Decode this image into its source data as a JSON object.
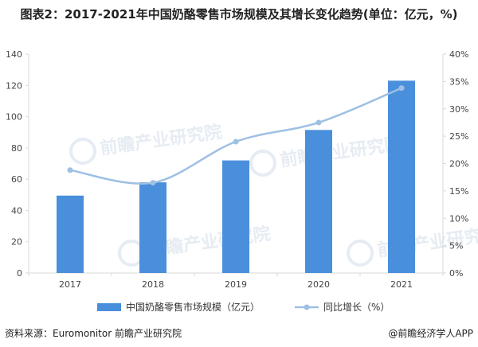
{
  "title": "图表2：2017-2021年中国奶酪零售市场规模及其增长变化趋势(单位：亿元，%)",
  "source": "资料来源：Euromonitor 前瞻产业研究院",
  "credit": "@前瞻经济学人APP",
  "watermark": "前瞻产业研究院",
  "colors": {
    "bar": "#4a8fdc",
    "line": "#9ec0e4",
    "axis": "#d9d9d9",
    "watermark": "#e6ecf3"
  },
  "chart_data": {
    "type": "bar",
    "categories": [
      "2017",
      "2018",
      "2019",
      "2020",
      "2021"
    ],
    "y_left": {
      "ticks": [
        "0",
        "20",
        "40",
        "60",
        "80",
        "100",
        "120",
        "140"
      ],
      "min": 0,
      "max": 140
    },
    "y_right": {
      "ticks": [
        "0%",
        "5%",
        "10%",
        "15%",
        "20%",
        "25%",
        "30%",
        "35%",
        "40%"
      ],
      "min": 0,
      "max": 40
    },
    "series": [
      {
        "name": "中国奶酪零售市场规模（亿元）",
        "kind": "bar",
        "axis": "left",
        "values": [
          49.5,
          58,
          72,
          91.5,
          123
        ]
      },
      {
        "name": "同比增长（%）",
        "kind": "line",
        "axis": "right",
        "values": [
          18.8,
          16.5,
          24,
          27.5,
          33.8
        ]
      }
    ],
    "grid": false,
    "legend_position": "bottom"
  }
}
